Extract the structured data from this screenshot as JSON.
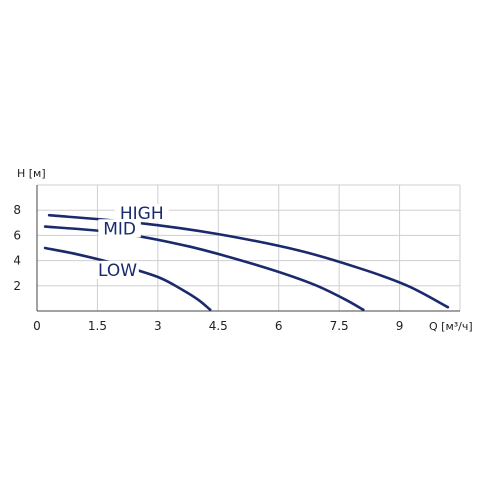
{
  "chart_data": {
    "type": "line",
    "xlabel": "Q [м³/ч]",
    "ylabel": "H [м]",
    "xlim": [
      0,
      10.5
    ],
    "ylim": [
      0,
      10
    ],
    "x_ticks": [
      "0",
      "1.5",
      "3",
      "4.5",
      "6",
      "7.5",
      "9"
    ],
    "x_tick_values": [
      0,
      1.5,
      3,
      4.5,
      6,
      7.5,
      9
    ],
    "y_ticks": [
      "2",
      "4",
      "6",
      "8"
    ],
    "y_tick_values": [
      2,
      4,
      6,
      8
    ],
    "grid": true,
    "curve_color": "#1a2a6c",
    "series": [
      {
        "name": "HIGH",
        "x": [
          0.3,
          2.5,
          4.5,
          6.5,
          8.0,
          9.2,
          10.2
        ],
        "values": [
          7.6,
          7.0,
          6.1,
          4.8,
          3.4,
          2.0,
          0.3
        ]
      },
      {
        "name": "MID",
        "x": [
          0.2,
          2.0,
          3.8,
          5.5,
          6.8,
          7.6,
          8.1
        ],
        "values": [
          6.7,
          6.2,
          5.1,
          3.6,
          2.2,
          1.0,
          0.1
        ]
      },
      {
        "name": "LOW",
        "x": [
          0.2,
          1.0,
          2.0,
          3.0,
          3.6,
          4.0,
          4.3
        ],
        "values": [
          5.0,
          4.5,
          3.7,
          2.7,
          1.7,
          0.9,
          0.1
        ]
      }
    ]
  }
}
